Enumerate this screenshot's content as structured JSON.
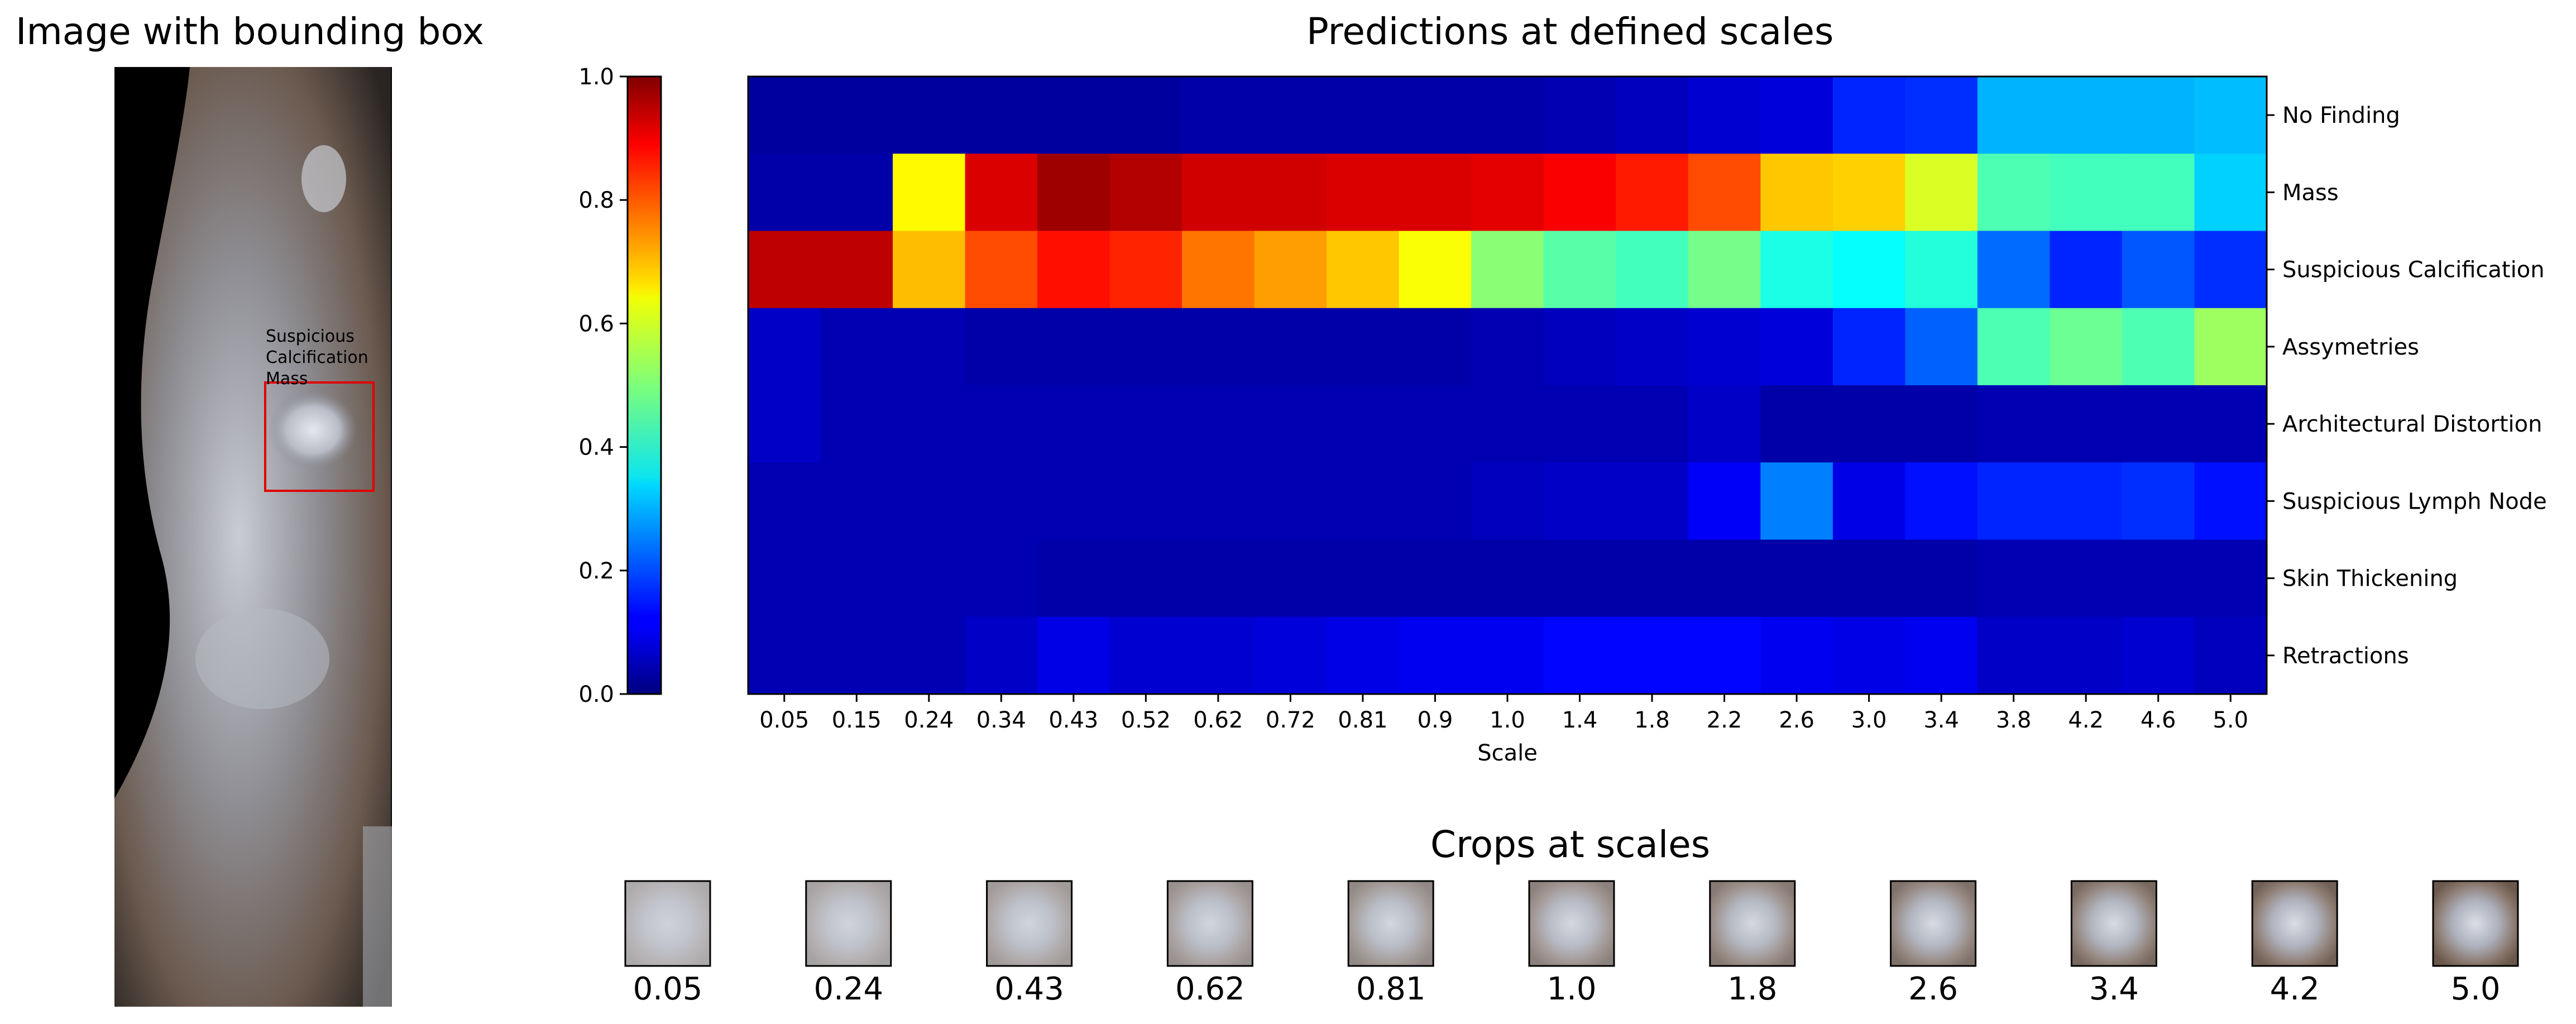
{
  "left_panel": {
    "title": "Image with bounding box",
    "box_labels": [
      "Suspicious",
      "Calcification",
      "Mass"
    ]
  },
  "chart_data": {
    "type": "heatmap",
    "title": "Predictions at defined scales",
    "xlabel": "Scale",
    "x": [
      "0.05",
      "0.15",
      "0.24",
      "0.34",
      "0.43",
      "0.52",
      "0.62",
      "0.72",
      "0.81",
      "0.9",
      "1.0",
      "1.4",
      "1.8",
      "2.2",
      "2.6",
      "3.0",
      "3.4",
      "3.8",
      "4.2",
      "4.6",
      "5.0"
    ],
    "y": [
      "No Finding",
      "Mass",
      "Suspicious Calcification",
      "Assymetries",
      "Architectural Distortion",
      "Suspicious Lymph Node",
      "Skin Thickening",
      "Retractions"
    ],
    "values": [
      [
        0.03,
        0.03,
        0.03,
        0.03,
        0.03,
        0.03,
        0.04,
        0.04,
        0.04,
        0.04,
        0.04,
        0.05,
        0.06,
        0.08,
        0.09,
        0.16,
        0.17,
        0.3,
        0.3,
        0.3,
        0.31
      ],
      [
        0.04,
        0.04,
        0.63,
        0.91,
        0.97,
        0.95,
        0.92,
        0.92,
        0.91,
        0.91,
        0.9,
        0.88,
        0.85,
        0.8,
        0.68,
        0.67,
        0.59,
        0.45,
        0.44,
        0.44,
        0.33
      ],
      [
        0.94,
        0.94,
        0.69,
        0.8,
        0.86,
        0.84,
        0.76,
        0.72,
        0.68,
        0.62,
        0.51,
        0.46,
        0.44,
        0.49,
        0.4,
        0.38,
        0.41,
        0.23,
        0.16,
        0.21,
        0.17
      ],
      [
        0.07,
        0.05,
        0.05,
        0.04,
        0.04,
        0.04,
        0.04,
        0.04,
        0.04,
        0.04,
        0.05,
        0.06,
        0.07,
        0.08,
        0.09,
        0.16,
        0.22,
        0.45,
        0.48,
        0.45,
        0.53
      ],
      [
        0.07,
        0.05,
        0.05,
        0.05,
        0.05,
        0.05,
        0.05,
        0.05,
        0.05,
        0.05,
        0.05,
        0.05,
        0.05,
        0.07,
        0.04,
        0.04,
        0.04,
        0.05,
        0.05,
        0.05,
        0.05
      ],
      [
        0.05,
        0.05,
        0.05,
        0.05,
        0.05,
        0.05,
        0.05,
        0.05,
        0.05,
        0.05,
        0.06,
        0.07,
        0.07,
        0.12,
        0.25,
        0.1,
        0.14,
        0.16,
        0.16,
        0.17,
        0.14
      ],
      [
        0.05,
        0.05,
        0.05,
        0.05,
        0.04,
        0.04,
        0.04,
        0.04,
        0.04,
        0.04,
        0.04,
        0.04,
        0.04,
        0.04,
        0.04,
        0.04,
        0.04,
        0.05,
        0.05,
        0.05,
        0.05
      ],
      [
        0.05,
        0.05,
        0.05,
        0.07,
        0.1,
        0.08,
        0.08,
        0.09,
        0.1,
        0.11,
        0.11,
        0.13,
        0.13,
        0.13,
        0.11,
        0.1,
        0.11,
        0.07,
        0.07,
        0.08,
        0.06
      ]
    ],
    "colorbar": {
      "ticks": [
        "0.0",
        "0.2",
        "0.4",
        "0.6",
        "0.8",
        "1.0"
      ],
      "range": [
        0,
        1
      ],
      "colormap": "jet"
    }
  },
  "crops": {
    "title": "Crops at scales",
    "labels": [
      "0.05",
      "0.24",
      "0.43",
      "0.62",
      "0.81",
      "1.0",
      "1.8",
      "2.6",
      "3.4",
      "4.2",
      "5.0"
    ]
  }
}
